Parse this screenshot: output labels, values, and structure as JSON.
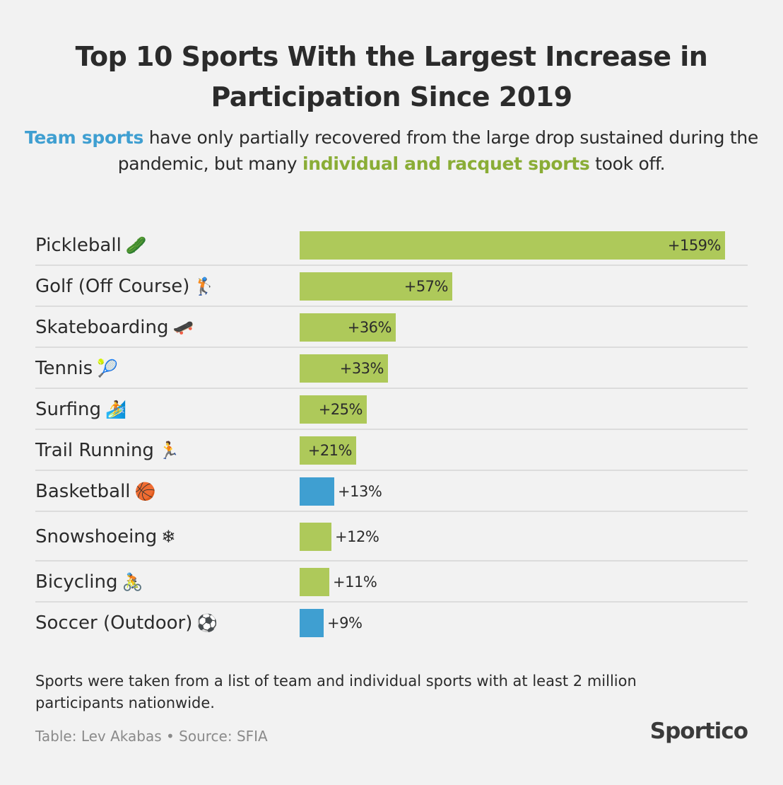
{
  "title": "Top 10 Sports With the Largest Increase in Participation Since 2019",
  "subtitle": {
    "team_highlight": "Team sports",
    "part1": " have only partially recovered from the large drop sustained during the pandemic, but many ",
    "individual_highlight": "individual and racquet sports",
    "part2": " took off."
  },
  "colors": {
    "individual": "#aec95a",
    "team": "#3f9fd1",
    "background": "#f2f2f2",
    "team_text": "#3f9fd1",
    "individual_text": "#8aad36"
  },
  "chart_data": {
    "type": "bar",
    "orientation": "horizontal",
    "categories": [
      "Pickleball",
      "Golf (Off Course)",
      "Skateboarding",
      "Tennis",
      "Surfing",
      "Trail Running",
      "Basketball",
      "Snowshoeing",
      "Bicycling",
      "Soccer (Outdoor)"
    ],
    "emojis": [
      "🥒",
      "🏌",
      "🛹",
      "🎾",
      "🏄",
      "🏃",
      "🏀",
      "❄",
      "🚴",
      "⚽"
    ],
    "values": [
      159,
      57,
      36,
      33,
      25,
      21,
      13,
      12,
      11,
      9
    ],
    "value_labels": [
      "+159%",
      "+57%",
      "+36%",
      "+33%",
      "+25%",
      "+21%",
      "+13%",
      "+12%",
      "+11%",
      "+9%"
    ],
    "groups": [
      "individual",
      "individual",
      "individual",
      "individual",
      "individual",
      "individual",
      "team",
      "individual",
      "individual",
      "team"
    ],
    "xlim": [
      0,
      159
    ],
    "grid": false
  },
  "footnote": "Sports were taken from a list of team and individual sports with at least 2 million participants nationwide.",
  "credit": "Table: Lev Akabas • Source: SFIA",
  "logo": "Sportico"
}
